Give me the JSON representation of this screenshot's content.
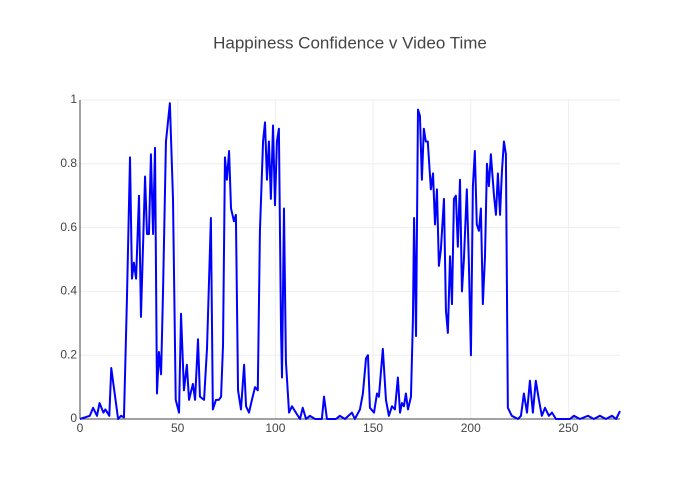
{
  "chart_data": {
    "type": "line",
    "title": "Happiness Confidence v Video Time",
    "x": [
      0,
      5,
      6.7,
      8.7,
      10,
      12,
      13,
      15,
      16,
      19.5,
      21,
      22.5,
      24,
      25.6,
      26.6,
      27.6,
      28.7,
      30.2,
      31.2,
      33.3,
      34.3,
      35.3,
      36.3,
      37.4,
      38.4,
      39.4,
      40.4,
      41.5,
      42.5,
      44,
      46,
      47.6,
      49,
      50.7,
      51.7,
      53.2,
      54.7,
      55.8,
      57.8,
      58.9,
      60.4,
      61.4,
      63.5,
      65,
      67,
      68,
      69.6,
      71.1,
      72.2,
      73.2,
      74.2,
      75.2,
      76.3,
      77.3,
      78.8,
      79.8,
      80.9,
      82.4,
      84,
      85,
      86.5,
      88,
      89.6,
      91,
      92.1,
      93.7,
      94.7,
      95.7,
      96.7,
      97.7,
      98.8,
      99.8,
      100.8,
      101.8,
      102.9,
      103.4,
      104.4,
      105.4,
      107,
      108.5,
      110.5,
      112.6,
      114,
      115.7,
      117.7,
      120.3,
      123.8,
      124.9,
      126.4,
      131,
      133,
      135.6,
      139.2,
      140.7,
      143.3,
      144.8,
      146.4,
      147.4,
      148.4,
      150.5,
      152,
      153,
      155,
      156.6,
      158.1,
      159.7,
      161.2,
      162.7,
      163.8,
      164.8,
      165.8,
      166.8,
      167.9,
      169.4,
      170.4,
      171,
      172,
      173,
      174,
      175,
      176,
      177,
      178,
      179.6,
      180.7,
      181.7,
      182.7,
      183.7,
      184.7,
      186.3,
      187.3,
      188.3,
      189.4,
      190.4,
      191.4,
      192.4,
      193.4,
      194.5,
      195.5,
      196.5,
      198,
      199,
      200.1,
      201.1,
      202.1,
      203.1,
      204.2,
      205.2,
      206.2,
      207.3,
      208.3,
      209.3,
      210.3,
      211.9,
      212.9,
      213.9,
      215,
      216,
      217,
      218,
      219,
      221,
      224.2,
      225.7,
      227.2,
      228.8,
      230.3,
      231.8,
      233.3,
      234.9,
      236.4,
      238,
      240,
      241.6,
      243.6,
      250.8,
      252.8,
      255.9,
      260,
      263,
      266.1,
      269.2,
      272.3,
      274.4,
      276.4
    ],
    "values": [
      0,
      0.01,
      0.035,
      0.01,
      0.05,
      0.02,
      0.03,
      0.01,
      0.16,
      0,
      0.01,
      0.005,
      0.37,
      0.82,
      0.44,
      0.49,
      0.44,
      0.7,
      0.32,
      0.76,
      0.58,
      0.58,
      0.83,
      0.58,
      0.85,
      0.08,
      0.21,
      0.14,
      0.4,
      0.87,
      0.99,
      0.69,
      0.06,
      0.02,
      0.33,
      0.09,
      0.17,
      0.06,
      0.11,
      0.06,
      0.25,
      0.07,
      0.06,
      0.22,
      0.63,
      0.03,
      0.06,
      0.06,
      0.07,
      0.23,
      0.82,
      0.75,
      0.84,
      0.66,
      0.62,
      0.64,
      0.09,
      0.03,
      0.17,
      0.04,
      0.02,
      0.06,
      0.1,
      0.09,
      0.59,
      0.87,
      0.93,
      0.75,
      0.87,
      0.69,
      0.92,
      0.67,
      0.87,
      0.91,
      0.28,
      0.13,
      0.66,
      0.18,
      0.02,
      0.04,
      0.02,
      0,
      0.035,
      0,
      0.01,
      0,
      0,
      0.07,
      0,
      0,
      0.01,
      0,
      0.02,
      0,
      0.03,
      0.08,
      0.19,
      0.2,
      0.035,
      0.02,
      0.08,
      0.07,
      0.22,
      0.06,
      0.01,
      0.04,
      0.03,
      0.13,
      0.02,
      0.05,
      0.04,
      0.08,
      0.03,
      0.07,
      0.31,
      0.63,
      0.26,
      0.97,
      0.95,
      0.75,
      0.91,
      0.87,
      0.87,
      0.72,
      0.77,
      0.61,
      0.72,
      0.48,
      0.53,
      0.69,
      0.34,
      0.27,
      0.51,
      0.36,
      0.69,
      0.7,
      0.54,
      0.75,
      0.4,
      0.5,
      0.72,
      0.5,
      0.2,
      0.73,
      0.84,
      0.61,
      0.59,
      0.66,
      0.36,
      0.51,
      0.8,
      0.73,
      0.83,
      0.7,
      0.64,
      0.77,
      0.64,
      0.78,
      0.87,
      0.83,
      0.035,
      0.01,
      0,
      0.01,
      0.08,
      0.02,
      0.12,
      0.02,
      0.12,
      0.06,
      0.01,
      0.035,
      0.01,
      0.02,
      0,
      0,
      0.01,
      0,
      0.01,
      0,
      0.01,
      0,
      0.01,
      0,
      0.025
    ],
    "color": "#0000ff",
    "xlim": [
      0,
      276.4
    ],
    "xticks": [
      0,
      50,
      100,
      150,
      200,
      250
    ],
    "ylim": [
      0,
      1
    ],
    "yticks": [
      0,
      0.2,
      0.4,
      0.6,
      0.8,
      1
    ],
    "grid": true
  }
}
